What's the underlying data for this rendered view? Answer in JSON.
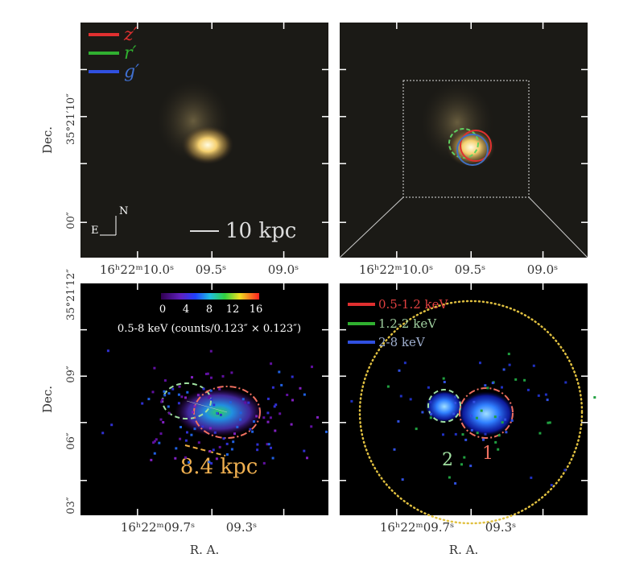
{
  "panels": [
    {
      "legend": [
        {
          "label": "z′",
          "color": "#e03030"
        },
        {
          "label": "r′",
          "color": "#30b030"
        },
        {
          "label": "g′",
          "color": "#3050e0"
        }
      ],
      "y_label": "Dec.",
      "y_ticks": [
        "35°21′10″",
        "00″"
      ],
      "x_ticks": [
        "16ʰ22ᵐ10.0ˢ",
        "09.5ˢ",
        "09.0ˢ"
      ],
      "compass": {
        "north": "N",
        "east": "E"
      },
      "scale_bar": "10 kpc"
    },
    {
      "x_ticks": [
        "16ʰ22ᵐ10.0ˢ",
        "09.5ˢ",
        "09.0ˢ"
      ]
    },
    {
      "y_label": "Dec.",
      "y_ticks": [
        "35°21′12″",
        "09″",
        "06″",
        "03″"
      ],
      "colorbar": {
        "ticks": [
          0,
          4,
          8,
          12,
          16
        ],
        "label": "0.5-8 keV (counts/0.123″ × 0.123″)"
      },
      "scale_bar": "8.4 kpc",
      "x_ticks": [
        "16ʰ22ᵐ09.7ˢ",
        "09.3ˢ"
      ],
      "x_label": "R. A."
    },
    {
      "legend": [
        {
          "label": "0.5-1.2 keV",
          "color": "#e03030"
        },
        {
          "label": "1.2-2 keV",
          "color": "#30b030"
        },
        {
          "label": "2-8 keV",
          "color": "#3050e0"
        }
      ],
      "regions": [
        "2",
        "1"
      ],
      "x_ticks": [
        "16ʰ22ᵐ09.7ˢ",
        "09.3ˢ"
      ],
      "x_label": "R. A."
    }
  ]
}
